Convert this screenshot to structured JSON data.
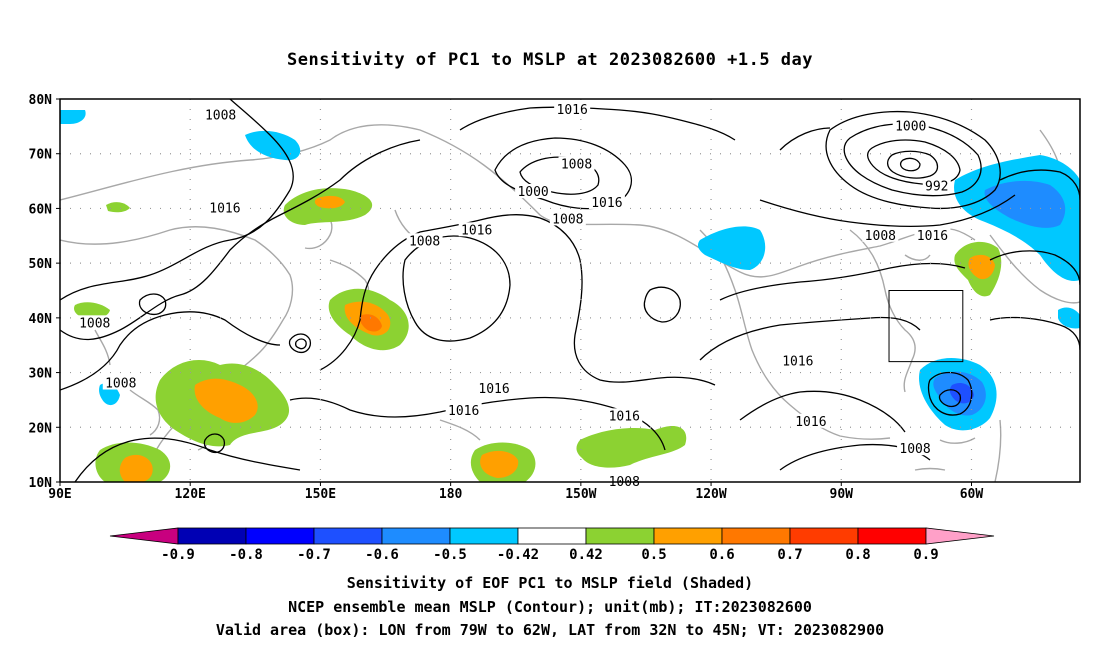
{
  "title": "Sensitivity of PC1 to MSLP at 2023082600 +1.5 day",
  "map": {
    "lon_labels": [
      "90E",
      "120E",
      "150E",
      "180",
      "150W",
      "120W",
      "90W",
      "60W"
    ],
    "lon_values": [
      90,
      120,
      150,
      180,
      210,
      240,
      270,
      300
    ],
    "lat_labels": [
      "80N",
      "70N",
      "60N",
      "50N",
      "40N",
      "30N",
      "20N",
      "10N"
    ],
    "lat_values": [
      80,
      70,
      60,
      50,
      40,
      30,
      20,
      10
    ],
    "contour_labels": [
      {
        "text": "1008",
        "lon": 127,
        "lat": 77
      },
      {
        "text": "1016",
        "lon": 208,
        "lat": 78
      },
      {
        "text": "1008",
        "lon": 209,
        "lat": 68
      },
      {
        "text": "1000",
        "lon": 286,
        "lat": 75
      },
      {
        "text": "1000",
        "lon": 199,
        "lat": 63
      },
      {
        "text": "992",
        "lon": 292,
        "lat": 64
      },
      {
        "text": "1008",
        "lon": 207,
        "lat": 58
      },
      {
        "text": "1016",
        "lon": 216,
        "lat": 61
      },
      {
        "text": "1016",
        "lon": 128,
        "lat": 60
      },
      {
        "text": "1016",
        "lon": 186,
        "lat": 56
      },
      {
        "text": "1008",
        "lon": 174,
        "lat": 54
      },
      {
        "text": "1008",
        "lon": 279,
        "lat": 55
      },
      {
        "text": "1016",
        "lon": 291,
        "lat": 55
      },
      {
        "text": "1008",
        "lon": 98,
        "lat": 39
      },
      {
        "text": "1008",
        "lon": 104,
        "lat": 28
      },
      {
        "text": "1016",
        "lon": 190,
        "lat": 27
      },
      {
        "text": "1016",
        "lon": 183,
        "lat": 23
      },
      {
        "text": "1016",
        "lon": 260,
        "lat": 32
      },
      {
        "text": "1016",
        "lon": 220,
        "lat": 22
      },
      {
        "text": "1016",
        "lon": 263,
        "lat": 21
      },
      {
        "text": "1008",
        "lon": 287,
        "lat": 16
      },
      {
        "text": "1008",
        "lon": 220,
        "lat": 10
      }
    ],
    "valid_box": {
      "lon_min": 281,
      "lon_max": 298,
      "lat_min": 32,
      "lat_max": 45
    }
  },
  "colorbar": {
    "labels": [
      "-0.9",
      "-0.8",
      "-0.7",
      "-0.6",
      "-0.5",
      "-0.42",
      "0.42",
      "0.5",
      "0.6",
      "0.7",
      "0.8",
      "0.9"
    ],
    "colors": [
      "#0000b4",
      "#0000ff",
      "#1e50ff",
      "#1e8cff",
      "#00c8ff",
      "#ffffff",
      "#8cd232",
      "#ffa000",
      "#ff7800",
      "#ff3c00",
      "#ff0000"
    ],
    "low_end_color": "#c8007f",
    "high_end_color": "#ffa0c8"
  },
  "footer": {
    "line1": "Sensitivity of EOF PC1 to MSLP field (Shaded)",
    "line2": "NCEP ensemble mean MSLP (Contour); unit(mb); IT:2023082600",
    "line3": "Valid area (box): LON from 79W to 62W, LAT from 32N to 45N; VT: 2023082900"
  }
}
